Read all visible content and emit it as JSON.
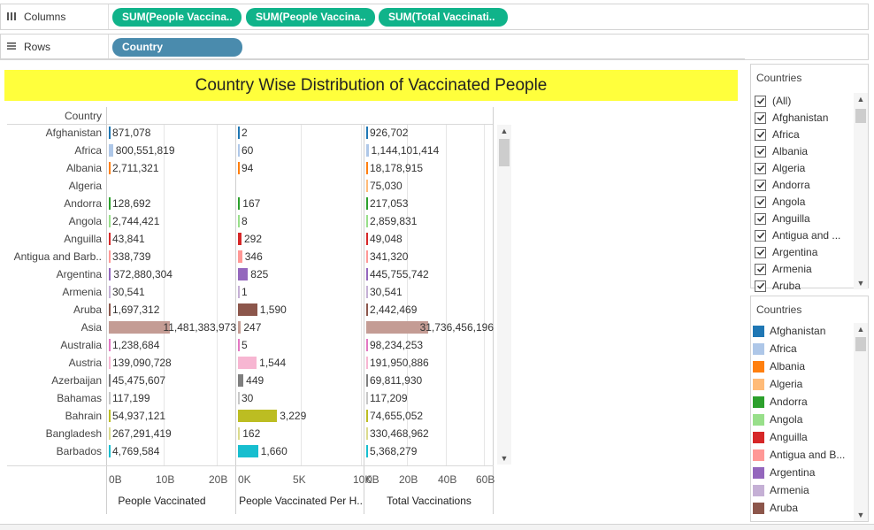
{
  "shelves": {
    "columns": {
      "label": "Columns",
      "pills": [
        "SUM(People Vaccina..",
        "SUM(People Vaccina..",
        "SUM(Total Vaccinati.."
      ]
    },
    "rows": {
      "label": "Rows",
      "pills": [
        "Country"
      ]
    }
  },
  "view": {
    "title": "Country Wise Distribution of Vaccinated People",
    "row_header": "Country",
    "axes": [
      {
        "title": "People Vaccinated",
        "ticks": [
          "0B",
          "10B",
          "20B"
        ]
      },
      {
        "title": "People Vaccinated Per H..",
        "ticks": [
          "0K",
          "5K",
          "10K"
        ]
      },
      {
        "title": "Total Vaccinations",
        "ticks": [
          "0B",
          "20B",
          "40B",
          "60B"
        ]
      }
    ],
    "rows": [
      {
        "country": "Afghanistan",
        "pv": "871,078",
        "pvph": "2",
        "tv": "926,702"
      },
      {
        "country": "Africa",
        "pv": "800,551,819",
        "pvph": "60",
        "tv": "1,144,101,414"
      },
      {
        "country": "Albania",
        "pv": "2,711,321",
        "pvph": "94",
        "tv": "18,178,915"
      },
      {
        "country": "Algeria",
        "pv": "",
        "pvph": "",
        "tv": "75,030"
      },
      {
        "country": "Andorra",
        "pv": "128,692",
        "pvph": "167",
        "tv": "217,053"
      },
      {
        "country": "Angola",
        "pv": "2,744,421",
        "pvph": "8",
        "tv": "2,859,831"
      },
      {
        "country": "Anguilla",
        "pv": "43,841",
        "pvph": "292",
        "tv": "49,048"
      },
      {
        "country": "Antigua and Barb..",
        "pv": "338,739",
        "pvph": "346",
        "tv": "341,320"
      },
      {
        "country": "Argentina",
        "pv": "372,880,304",
        "pvph": "825",
        "tv": "445,755,742"
      },
      {
        "country": "Armenia",
        "pv": "30,541",
        "pvph": "1",
        "tv": "30,541"
      },
      {
        "country": "Aruba",
        "pv": "1,697,312",
        "pvph": "1,590",
        "tv": "2,442,469"
      },
      {
        "country": "Asia",
        "pv": "11,481,383,973",
        "pvph": "247",
        "tv": "31,736,456,196"
      },
      {
        "country": "Australia",
        "pv": "1,238,684",
        "pvph": "5",
        "tv": "98,234,253"
      },
      {
        "country": "Austria",
        "pv": "139,090,728",
        "pvph": "1,544",
        "tv": "191,950,886"
      },
      {
        "country": "Azerbaijan",
        "pv": "45,475,607",
        "pvph": "449",
        "tv": "69,811,930"
      },
      {
        "country": "Bahamas",
        "pv": "117,199",
        "pvph": "30",
        "tv": "117,209"
      },
      {
        "country": "Bahrain",
        "pv": "54,937,121",
        "pvph": "3,229",
        "tv": "74,655,052"
      },
      {
        "country": "Bangladesh",
        "pv": "267,291,419",
        "pvph": "162",
        "tv": "330,468,962"
      },
      {
        "country": "Barbados",
        "pv": "4,769,584",
        "pvph": "1,660",
        "tv": "5,368,279"
      }
    ]
  },
  "filter_panel": {
    "title": "Countries",
    "items": [
      "(All)",
      "Afghanistan",
      "Africa",
      "Albania",
      "Algeria",
      "Andorra",
      "Angola",
      "Anguilla",
      "Antigua and ...",
      "Argentina",
      "Armenia",
      "Aruba"
    ]
  },
  "legend_panel": {
    "title": "Countries",
    "items": [
      {
        "label": "Afghanistan",
        "color": "#1f77b4"
      },
      {
        "label": "Africa",
        "color": "#aec7e8"
      },
      {
        "label": "Albania",
        "color": "#ff7f0e"
      },
      {
        "label": "Algeria",
        "color": "#ffbb78"
      },
      {
        "label": "Andorra",
        "color": "#2ca02c"
      },
      {
        "label": "Angola",
        "color": "#98df8a"
      },
      {
        "label": "Anguilla",
        "color": "#d62728"
      },
      {
        "label": "Antigua and B...",
        "color": "#ff9896"
      },
      {
        "label": "Argentina",
        "color": "#9467bd"
      },
      {
        "label": "Armenia",
        "color": "#c5b0d5"
      },
      {
        "label": "Aruba",
        "color": "#8c564b"
      }
    ]
  },
  "series_colors": {
    "Afghanistan": "#1f77b4",
    "Africa": "#aec7e8",
    "Albania": "#ff7f0e",
    "Algeria": "#ffbb78",
    "Andorra": "#2ca02c",
    "Angola": "#98df8a",
    "Anguilla": "#d62728",
    "Antigua and Barb..": "#ff9896",
    "Argentina": "#9467bd",
    "Armenia": "#c5b0d5",
    "Aruba": "#8c564b",
    "Asia": "#c49c94",
    "Australia": "#e377c2",
    "Austria": "#f7b6d2",
    "Azerbaijan": "#7f7f7f",
    "Bahamas": "#c7c7c7",
    "Bahrain": "#bcbd22",
    "Bangladesh": "#dbdb8d",
    "Barbados": "#17becf"
  },
  "scales": {
    "pv_max": 23,
    "pvph_max": 10000,
    "tv_max": 63
  }
}
